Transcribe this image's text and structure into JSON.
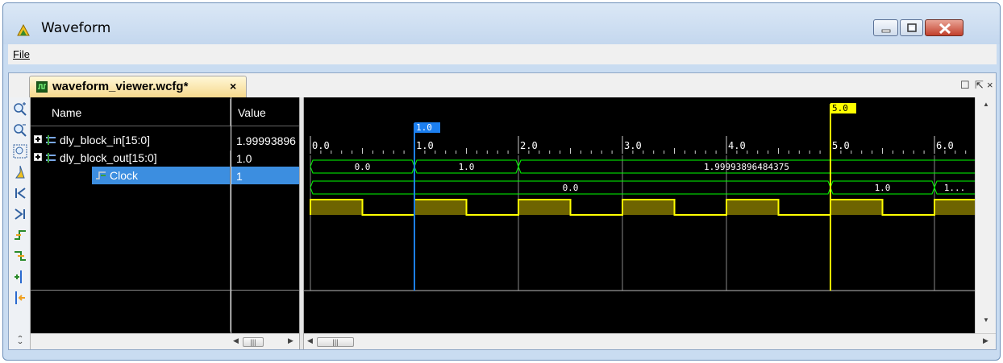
{
  "window": {
    "title": "Waveform",
    "buttons": {
      "minimize": "minimize",
      "maximize": "maximize",
      "close": "close"
    }
  },
  "menu": {
    "file": "File"
  },
  "tab": {
    "label": "waveform_viewer.wcfg*",
    "close": "×"
  },
  "frame_controls": {
    "restore": "☐",
    "float": "⇱",
    "close": "×"
  },
  "columns": {
    "name": "Name",
    "value": "Value"
  },
  "signals": [
    {
      "name": "dly_block_in[15:0]",
      "value": "1.99993896",
      "expandable": true,
      "selected": false
    },
    {
      "name": "dly_block_out[15:0]",
      "value": "1.0",
      "expandable": true,
      "selected": false
    },
    {
      "name": "Clock",
      "value": "1",
      "expandable": false,
      "selected": true
    }
  ],
  "toolbar_icons": [
    "zoom-in-icon",
    "zoom-out-icon",
    "zoom-fit-icon",
    "cursor-icon",
    "go-to-start-icon",
    "go-to-end-icon",
    "previous-transition-icon",
    "next-transition-icon",
    "add-marker-icon",
    "previous-marker-icon",
    "expand-icon"
  ],
  "timeline": {
    "ticks": [
      "0.0",
      "1.0",
      "2.0",
      "3.0",
      "4.0",
      "5.0",
      "6.0"
    ],
    "cursor_blue_label": "1.0",
    "cursor_yellow_label": "5.0",
    "dly_block_in": [
      {
        "from": 0.0,
        "to": 1.0,
        "label": "0.0"
      },
      {
        "from": 1.0,
        "to": 2.0,
        "label": "1.0"
      },
      {
        "from": 2.0,
        "to": 6.5,
        "label": "1.99993896484375"
      }
    ],
    "dly_block_out": [
      {
        "from": 0.0,
        "to": 5.0,
        "label": "0.0"
      },
      {
        "from": 5.0,
        "to": 6.0,
        "label": "1.0"
      },
      {
        "from": 6.0,
        "to": 6.5,
        "label": "1..."
      }
    ],
    "clock_period": 1.0,
    "clock_high_fraction": 0.5
  },
  "colors": {
    "bus": "#00ff00",
    "clock": "#ffff00",
    "clock_fill": "#6e6400",
    "cursor_blue": "#1c7ff0",
    "cursor_yellow": "#ffff00",
    "grid": "#888888"
  }
}
